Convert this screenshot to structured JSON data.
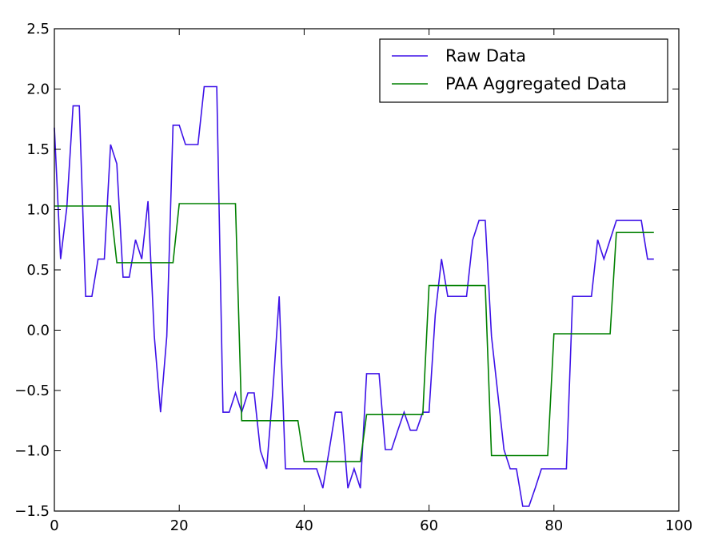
{
  "chart_data": {
    "type": "line",
    "title": "",
    "xlabel": "",
    "ylabel": "",
    "xlim": [
      0,
      100
    ],
    "ylim": [
      -1.5,
      2.5
    ],
    "xticks": [
      0,
      20,
      40,
      60,
      80,
      100
    ],
    "yticks": [
      -1.5,
      -1.0,
      -0.5,
      0.0,
      0.5,
      1.0,
      1.5,
      2.0,
      2.5
    ],
    "xtick_labels": [
      "0",
      "20",
      "40",
      "60",
      "80",
      "100"
    ],
    "ytick_labels": [
      "−1.5",
      "−1.0",
      "−0.5",
      "0.0",
      "0.5",
      "1.0",
      "1.5",
      "2.0",
      "2.5"
    ],
    "grid": false,
    "legend_position": "top-right",
    "series": [
      {
        "name": "Raw Data",
        "color": "#3e12e8",
        "x": [
          0,
          1,
          2,
          3,
          4,
          5,
          6,
          7,
          8,
          9,
          10,
          11,
          12,
          13,
          14,
          15,
          16,
          17,
          18,
          19,
          20,
          21,
          22,
          23,
          24,
          25,
          26,
          27,
          28,
          29,
          30,
          31,
          32,
          33,
          34,
          35,
          36,
          37,
          38,
          39,
          40,
          41,
          42,
          43,
          44,
          45,
          46,
          47,
          48,
          49,
          50,
          51,
          52,
          53,
          54,
          55,
          56,
          57,
          58,
          59,
          60,
          61,
          62,
          63,
          64,
          65,
          66,
          67,
          68,
          69,
          70,
          71,
          72,
          73,
          74,
          75,
          76,
          77,
          78,
          79,
          80,
          81,
          82,
          83,
          84,
          85,
          86,
          87,
          88,
          89,
          90,
          91,
          92,
          93,
          94,
          95,
          96
        ],
        "y": [
          1.68,
          0.59,
          1.02,
          1.86,
          1.86,
          0.28,
          0.28,
          0.59,
          0.59,
          1.54,
          1.38,
          0.44,
          0.44,
          0.75,
          0.59,
          1.07,
          -0.05,
          -0.68,
          -0.05,
          1.7,
          1.7,
          1.54,
          1.54,
          1.54,
          2.02,
          2.02,
          2.02,
          -0.68,
          -0.68,
          -0.52,
          -0.68,
          -0.52,
          -0.52,
          -1.0,
          -1.15,
          -0.5,
          0.28,
          -1.15,
          -1.15,
          -1.15,
          -1.15,
          -1.15,
          -1.15,
          -1.31,
          -1.0,
          -0.68,
          -0.68,
          -1.31,
          -1.15,
          -1.31,
          -0.36,
          -0.36,
          -0.36,
          -0.99,
          -0.99,
          -0.83,
          -0.68,
          -0.83,
          -0.83,
          -0.68,
          -0.68,
          0.13,
          0.59,
          0.28,
          0.28,
          0.28,
          0.28,
          0.75,
          0.91,
          0.91,
          -0.05,
          -0.52,
          -0.99,
          -1.15,
          -1.15,
          -1.46,
          -1.46,
          -1.31,
          -1.15,
          -1.15,
          -1.15,
          -1.15,
          -1.15,
          0.28,
          0.28,
          0.28,
          0.28,
          0.75,
          0.59,
          0.75,
          0.91,
          0.91,
          0.91,
          0.91,
          0.91,
          0.59,
          0.59
        ]
      },
      {
        "name": "PAA Aggregated Data",
        "color": "#008000",
        "x": [
          0,
          9,
          10,
          19,
          20,
          29,
          30,
          39,
          40,
          49,
          50,
          59,
          60,
          69,
          70,
          79,
          80,
          89,
          90,
          96
        ],
        "y": [
          1.03,
          1.03,
          0.56,
          0.56,
          1.05,
          1.05,
          -0.75,
          -0.75,
          -1.09,
          -1.09,
          -0.7,
          -0.7,
          0.37,
          0.37,
          -1.04,
          -1.04,
          -0.03,
          -0.03,
          0.81,
          0.81
        ]
      }
    ]
  }
}
